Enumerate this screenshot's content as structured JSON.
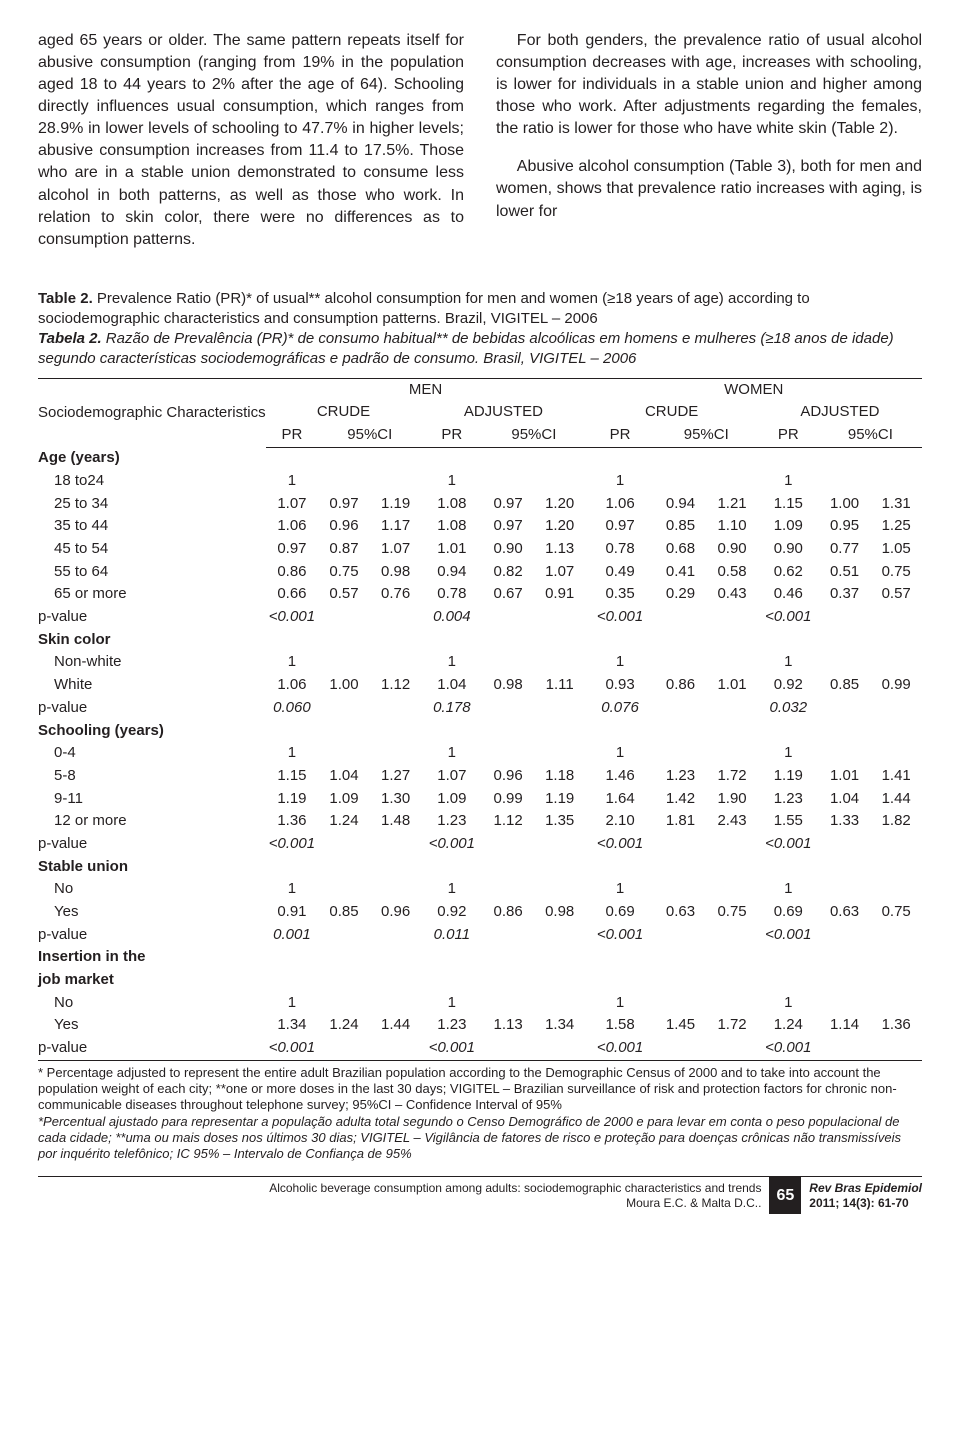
{
  "body": {
    "p1": "aged 65 years or older. The same pattern repeats itself for abusive consumption (ranging from 19% in the population aged 18 to 44 years to 2% after the age of 64). Schooling directly influences usual consumption, which ranges from 28.9% in lower levels of schooling to 47.7% in higher levels; abusive consumption increases from 11.4 to 17.5%. Those who are in a stable union demonstrated to consume less alcohol in both patterns, as well as those who work. In relation to skin color, there were no differences as to consumption patterns.",
    "p2": "For both genders, the prevalence ratio of usual alcohol consumption decreases with age, increases with schooling, is lower for individuals in a stable union and higher among those who work. After adjustments regarding the females, the ratio is lower for those who have white skin (Table 2).",
    "p3": "Abusive alcohol consumption (Table 3), both for men and women, shows that prevalence ratio increases with aging, is lower for"
  },
  "caption": {
    "en_label": "Table 2.",
    "en_text": " Prevalence Ratio (PR)* of usual** alcohol consumption for men and women (≥18 years of age) according to sociodemographic characteristics and consumption patterns. Brazil, VIGITEL – 2006",
    "pt_label": "Tabela 2.",
    "pt_text": " Razão de Prevalência (PR)* de consumo habitual** de bebidas alcoólicas em homens e mulheres (≥18 anos de idade) segundo características sociodemográficas e padrão de consumo. Brasil, VIGITEL – 2006"
  },
  "table": {
    "stub_header": "Sociodemographic Characteristics",
    "gender": {
      "m": "MEN",
      "w": "WOMEN"
    },
    "model": {
      "crude": "CRUDE",
      "adj": "ADJUSTED"
    },
    "colhead": {
      "pr": "PR",
      "ci": "95%CI"
    },
    "sections": [
      {
        "title": "Age (years)",
        "rows": [
          {
            "label": "18 to24",
            "v": [
              "1",
              "",
              "",
              "1",
              "",
              "",
              "1",
              "",
              "",
              "1",
              "",
              ""
            ]
          },
          {
            "label": "25 to 34",
            "v": [
              "1.07",
              "0.97",
              "1.19",
              "1.08",
              "0.97",
              "1.20",
              "1.06",
              "0.94",
              "1.21",
              "1.15",
              "1.00",
              "1.31"
            ]
          },
          {
            "label": "35 to 44",
            "v": [
              "1.06",
              "0.96",
              "1.17",
              "1.08",
              "0.97",
              "1.20",
              "0.97",
              "0.85",
              "1.10",
              "1.09",
              "0.95",
              "1.25"
            ]
          },
          {
            "label": "45 to 54",
            "v": [
              "0.97",
              "0.87",
              "1.07",
              "1.01",
              "0.90",
              "1.13",
              "0.78",
              "0.68",
              "0.90",
              "0.90",
              "0.77",
              "1.05"
            ]
          },
          {
            "label": "55 to 64",
            "v": [
              "0.86",
              "0.75",
              "0.98",
              "0.94",
              "0.82",
              "1.07",
              "0.49",
              "0.41",
              "0.58",
              "0.62",
              "0.51",
              "0.75"
            ]
          },
          {
            "label": "65 or more",
            "v": [
              "0.66",
              "0.57",
              "0.76",
              "0.78",
              "0.67",
              "0.91",
              "0.35",
              "0.29",
              "0.43",
              "0.46",
              "0.37",
              "0.57"
            ]
          }
        ],
        "pvalue": [
          "<0.001",
          "0.004",
          "<0.001",
          "<0.001"
        ]
      },
      {
        "title": "Skin color",
        "rows": [
          {
            "label": "Non-white",
            "v": [
              "1",
              "",
              "",
              "1",
              "",
              "",
              "1",
              "",
              "",
              "1",
              "",
              ""
            ]
          },
          {
            "label": "White",
            "v": [
              "1.06",
              "1.00",
              "1.12",
              "1.04",
              "0.98",
              "1.11",
              "0.93",
              "0.86",
              "1.01",
              "0.92",
              "0.85",
              "0.99"
            ]
          }
        ],
        "pvalue": [
          "0.060",
          "0.178",
          "0.076",
          "0.032"
        ]
      },
      {
        "title": "Schooling (years)",
        "rows": [
          {
            "label": "0-4",
            "v": [
              "1",
              "",
              "",
              "1",
              "",
              "",
              "1",
              "",
              "",
              "1",
              "",
              ""
            ]
          },
          {
            "label": "5-8",
            "v": [
              "1.15",
              "1.04",
              "1.27",
              "1.07",
              "0.96",
              "1.18",
              "1.46",
              "1.23",
              "1.72",
              "1.19",
              "1.01",
              "1.41"
            ]
          },
          {
            "label": "9-11",
            "v": [
              "1.19",
              "1.09",
              "1.30",
              "1.09",
              "0.99",
              "1.19",
              "1.64",
              "1.42",
              "1.90",
              "1.23",
              "1.04",
              "1.44"
            ]
          },
          {
            "label": "12 or more",
            "v": [
              "1.36",
              "1.24",
              "1.48",
              "1.23",
              "1.12",
              "1.35",
              "2.10",
              "1.81",
              "2.43",
              "1.55",
              "1.33",
              "1.82"
            ]
          }
        ],
        "pvalue": [
          "<0.001",
          "<0.001",
          "<0.001",
          "<0.001"
        ]
      },
      {
        "title": "Stable union",
        "rows": [
          {
            "label": "No",
            "v": [
              "1",
              "",
              "",
              "1",
              "",
              "",
              "1",
              "",
              "",
              "1",
              "",
              ""
            ]
          },
          {
            "label": "Yes",
            "v": [
              "0.91",
              "0.85",
              "0.96",
              "0.92",
              "0.86",
              "0.98",
              "0.69",
              "0.63",
              "0.75",
              "0.69",
              "0.63",
              "0.75"
            ]
          }
        ],
        "pvalue": [
          "0.001",
          "0.011",
          "<0.001",
          "<0.001"
        ]
      },
      {
        "title": "Insertion in the job market",
        "rows": [
          {
            "label": "No",
            "v": [
              "1",
              "",
              "",
              "1",
              "",
              "",
              "1",
              "",
              "",
              "1",
              "",
              ""
            ]
          },
          {
            "label": "Yes",
            "v": [
              "1.34",
              "1.24",
              "1.44",
              "1.23",
              "1.13",
              "1.34",
              "1.58",
              "1.45",
              "1.72",
              "1.24",
              "1.14",
              "1.36"
            ]
          }
        ],
        "pvalue": [
          "<0.001",
          "<0.001",
          "<0.001",
          "<0.001"
        ]
      }
    ],
    "pvalue_label": "p-value"
  },
  "footnotes": {
    "en": "* Percentage adjusted to represent the entire adult Brazilian population according to the Demographic Census of 2000 and to take into account the population weight of each city; **one or more doses in the last 30 days; VIGITEL – Brazilian surveillance of risk and protection factors for chronic non-communicable diseases throughout telephone survey; 95%CI – Confidence Interval of 95%",
    "pt": "*Percentual ajustado para representar a população adulta total segundo o Censo Demográfico de 2000 e para levar em conta o peso populacional de cada cidade; **uma ou mais doses nos últimos 30 dias; VIGITEL – Vigilância de fatores de risco e proteção para doenças crônicas não transmissíveis por inquérito telefônico; IC 95% – Intervalo de Confiança de 95%"
  },
  "footer": {
    "article_title": "Alcoholic beverage consumption among adults: sociodemographic characteristics and trends",
    "authors": "Moura E.C. & Malta D.C..",
    "page": "65",
    "journal": "Rev Bras Epidemiol",
    "issue": "2011; 14(3): 61-70"
  }
}
